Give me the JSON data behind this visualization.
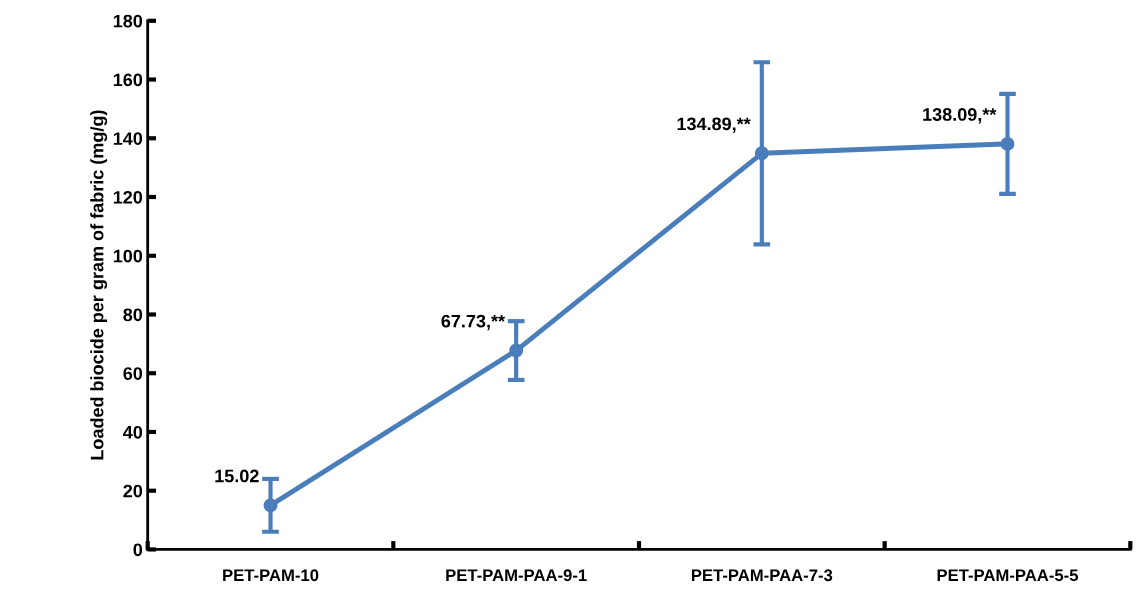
{
  "chart_data": {
    "type": "line",
    "ylabel": "Loaded biocide per gram of fabric (mg/g)",
    "categories": [
      "PET-PAM-10",
      "PET-PAM-PAA-9-1",
      "PET-PAM-PAA-7-3",
      "PET-PAM-PAA-5-5"
    ],
    "values": [
      15.02,
      67.73,
      134.89,
      138.09
    ],
    "errors": [
      9,
      10,
      31,
      17
    ],
    "value_labels": [
      "15.02",
      "67.73,**",
      "134.89,**",
      "138.09,**"
    ],
    "color": "#4a7ebb",
    "marker": "circle",
    "line_style": "solid",
    "ylim": [
      0,
      180
    ],
    "yticks": [
      0,
      20,
      40,
      60,
      80,
      100,
      120,
      140,
      160,
      180
    ],
    "grid": false
  }
}
